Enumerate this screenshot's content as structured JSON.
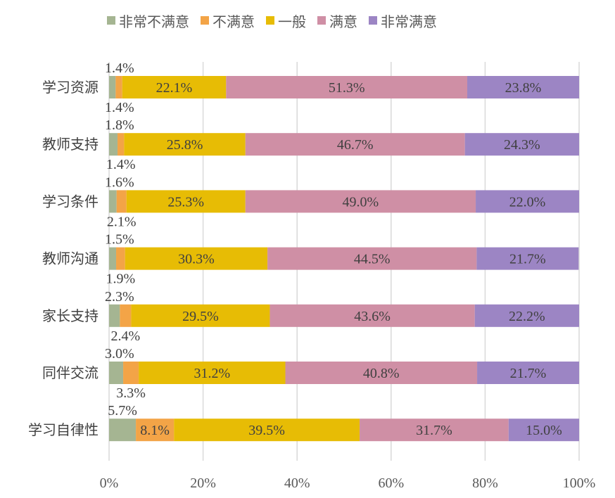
{
  "chart_data": {
    "type": "bar",
    "orientation": "horizontal",
    "stacked": "percent",
    "categories": [
      "学习资源",
      "教师支持",
      "学习条件",
      "教师沟通",
      "家长支持",
      "同伴交流",
      "学习自律性"
    ],
    "series": [
      {
        "name": "非常不满意",
        "color": "#a5b592",
        "values": [
          1.4,
          1.8,
          1.6,
          1.5,
          2.3,
          3.0,
          5.7
        ]
      },
      {
        "name": "不满意",
        "color": "#f3a447",
        "values": [
          1.4,
          1.4,
          2.1,
          1.9,
          2.4,
          3.3,
          8.1
        ]
      },
      {
        "name": "一般",
        "color": "#e7bc05",
        "values": [
          22.1,
          25.8,
          25.3,
          30.3,
          29.5,
          31.2,
          39.5
        ]
      },
      {
        "name": "满意",
        "color": "#cf8fa5",
        "values": [
          51.3,
          46.7,
          49.0,
          44.5,
          43.6,
          40.8,
          31.7
        ]
      },
      {
        "name": "非常满意",
        "color": "#9c85c4",
        "values": [
          23.8,
          24.3,
          22.0,
          21.7,
          22.2,
          21.7,
          15.0
        ]
      }
    ],
    "xlim": [
      0,
      100
    ],
    "xticks": [
      "0%",
      "20%",
      "40%",
      "60%",
      "80%",
      "100%"
    ],
    "grid": "vertical",
    "legend": "top"
  }
}
